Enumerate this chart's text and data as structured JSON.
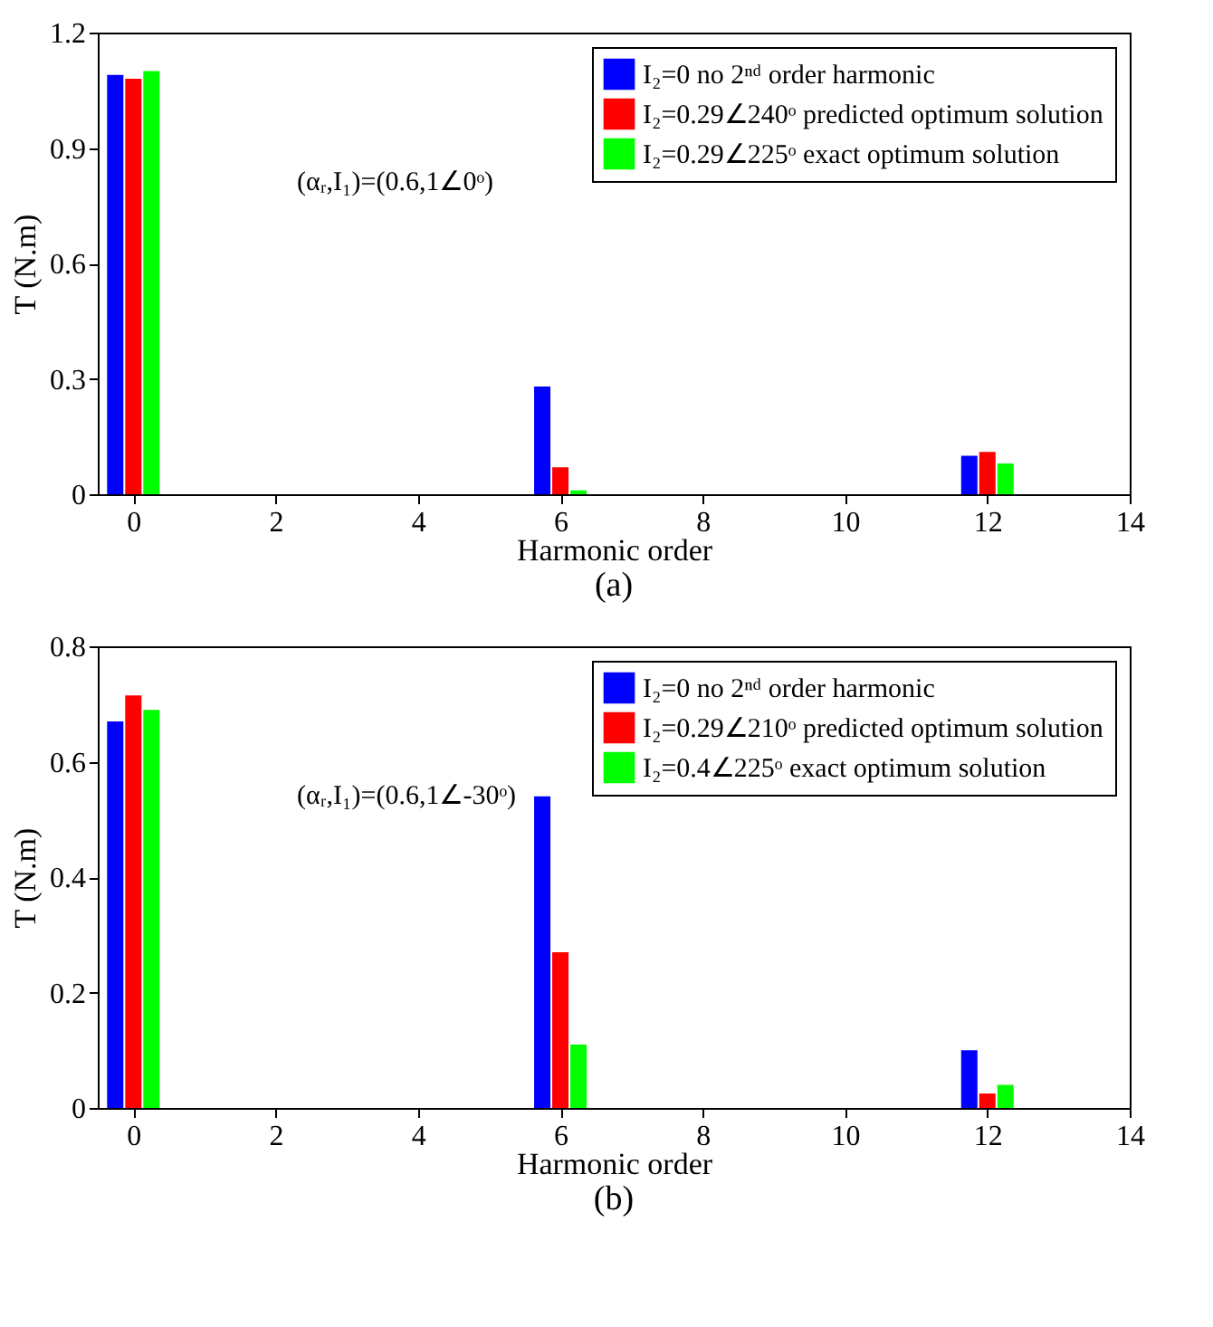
{
  "chart_data": [
    {
      "type": "bar",
      "title": "(a)",
      "xlabel": "Harmonic order",
      "ylabel": "T (N.m)",
      "annotations": [
        "(αᵣ,I₁)=(0.6,1∠0ᵒ)"
      ],
      "x": [
        0,
        6,
        12
      ],
      "series": [
        {
          "name": "I₂=0 no 2ⁿᵈ order harmonic",
          "color": "#0000ff",
          "values": [
            1.09,
            0.28,
            0.1
          ]
        },
        {
          "name": "I₂=0.29∠240ᵒ predicted optimum solution",
          "color": "#ff0000",
          "values": [
            1.08,
            0.07,
            0.11
          ]
        },
        {
          "name": "I₂=0.29∠225ᵒ exact optimum solution",
          "color": "#00ff00",
          "values": [
            1.1,
            0.01,
            0.08
          ]
        }
      ],
      "xlim": [
        -0.5,
        14
      ],
      "xticks": [
        0,
        2,
        4,
        6,
        8,
        10,
        12,
        14
      ],
      "ylim": [
        0,
        1.2
      ],
      "yticks": [
        0,
        0.3,
        0.6,
        0.9,
        1.2
      ],
      "legend": "top right",
      "grid": false
    },
    {
      "type": "bar",
      "title": "(b)",
      "xlabel": "Harmonic order",
      "ylabel": "T (N.m)",
      "annotations": [
        "(αᵣ,I₁)=(0.6,1∠-30ᵒ)"
      ],
      "x": [
        0,
        6,
        12
      ],
      "series": [
        {
          "name": "I₂=0 no 2ⁿᵈ order harmonic",
          "color": "#0000ff",
          "values": [
            0.67,
            0.54,
            0.1
          ]
        },
        {
          "name": "I₂=0.29∠210ᵒ predicted optimum solution",
          "color": "#ff0000",
          "values": [
            0.715,
            0.27,
            0.025
          ]
        },
        {
          "name": "I₂=0.4∠225ᵒ exact optimum solution",
          "color": "#00ff00",
          "values": [
            0.69,
            0.11,
            0.04
          ]
        }
      ],
      "xlim": [
        -0.5,
        14
      ],
      "xticks": [
        0,
        2,
        4,
        6,
        8,
        10,
        12,
        14
      ],
      "ylim": [
        0,
        0.8
      ],
      "yticks": [
        0,
        0.2,
        0.4,
        0.6,
        0.8
      ],
      "legend": "top right",
      "grid": false
    }
  ]
}
